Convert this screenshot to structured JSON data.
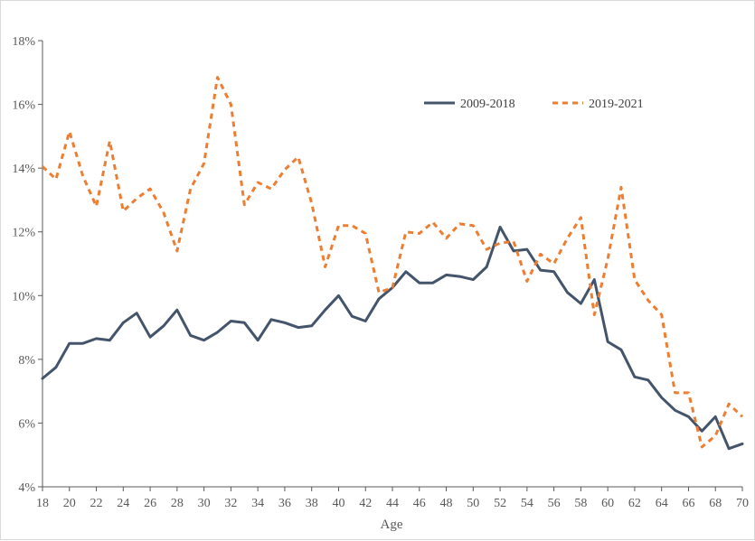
{
  "chart_data": {
    "type": "line",
    "title": "",
    "xlabel": "Age",
    "ylabel": "",
    "xlim": [
      18,
      70
    ],
    "ylim": [
      4,
      18
    ],
    "y_tick_format": "percent",
    "x_ticks": [
      18,
      20,
      22,
      24,
      26,
      28,
      30,
      32,
      34,
      36,
      38,
      40,
      42,
      44,
      46,
      48,
      50,
      52,
      54,
      56,
      58,
      60,
      62,
      64,
      66,
      68,
      70
    ],
    "y_ticks": [
      4,
      6,
      8,
      10,
      12,
      14,
      16,
      18
    ],
    "grid": false,
    "legend_position": "top-right",
    "x": [
      18,
      19,
      20,
      21,
      22,
      23,
      24,
      25,
      26,
      27,
      28,
      29,
      30,
      31,
      32,
      33,
      34,
      35,
      36,
      37,
      38,
      39,
      40,
      41,
      42,
      43,
      44,
      45,
      46,
      47,
      48,
      49,
      50,
      51,
      52,
      53,
      54,
      55,
      56,
      57,
      58,
      59,
      60,
      61,
      62,
      63,
      64,
      65,
      66,
      67,
      68,
      69,
      70
    ],
    "series": [
      {
        "name": "2009-2018",
        "color": "#44546a",
        "style": "solid",
        "values": [
          7.4,
          7.75,
          8.5,
          8.5,
          8.65,
          8.6,
          9.15,
          9.45,
          8.7,
          9.05,
          9.55,
          8.75,
          8.6,
          8.85,
          9.2,
          9.15,
          8.6,
          9.25,
          9.15,
          9.0,
          9.05,
          9.55,
          10.0,
          9.35,
          9.2,
          9.9,
          10.25,
          10.75,
          10.4,
          10.4,
          10.65,
          10.6,
          10.5,
          10.9,
          12.15,
          11.4,
          11.45,
          10.8,
          10.75,
          10.1,
          9.75,
          10.5,
          8.55,
          8.3,
          7.45,
          7.35,
          6.8,
          6.4,
          6.2,
          5.75,
          6.2,
          5.2,
          5.35
        ]
      },
      {
        "name": "2019-2021",
        "color": "#ed7d31",
        "style": "dashed",
        "values": [
          14.05,
          13.65,
          15.15,
          13.75,
          12.8,
          14.85,
          12.65,
          13.05,
          13.35,
          12.6,
          11.4,
          13.35,
          14.15,
          16.85,
          16.0,
          12.85,
          13.55,
          13.35,
          13.95,
          14.35,
          12.9,
          10.9,
          12.2,
          12.2,
          11.95,
          10.1,
          10.25,
          12.0,
          11.95,
          12.3,
          11.8,
          12.25,
          12.2,
          11.45,
          11.65,
          11.7,
          10.45,
          11.3,
          11.0,
          11.8,
          12.45,
          9.4,
          11.15,
          13.4,
          10.5,
          9.85,
          9.4,
          6.95,
          6.95,
          5.25,
          5.6,
          6.6,
          6.2
        ]
      }
    ]
  }
}
